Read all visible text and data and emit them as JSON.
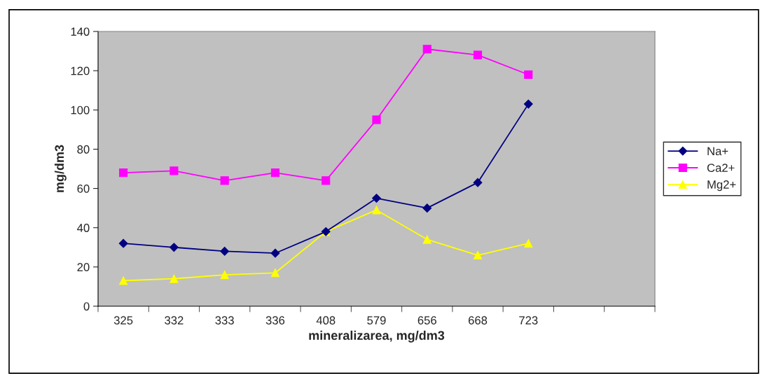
{
  "chart_data": {
    "type": "line",
    "xlabel": "mineralizarea, mg/dm3",
    "ylabel": "mg/dm3",
    "categories": [
      "325",
      "332",
      "333",
      "336",
      "408",
      "579",
      "656",
      "668",
      "723",
      null,
      null
    ],
    "series": [
      {
        "name": "Na+",
        "color": "#000080",
        "marker": "diamond",
        "values": [
          32,
          30,
          28,
          27,
          38,
          55,
          50,
          63,
          103,
          null,
          null
        ]
      },
      {
        "name": "Ca2+",
        "color": "#ff00ff",
        "marker": "square",
        "values": [
          68,
          69,
          64,
          68,
          64,
          95,
          131,
          128,
          118,
          null,
          null
        ]
      },
      {
        "name": "Mg2+",
        "color": "#ffff00",
        "marker": "triangle",
        "values": [
          13,
          14,
          16,
          17,
          38,
          49,
          34,
          26,
          32,
          null,
          null
        ]
      }
    ],
    "ylim": [
      0,
      140
    ],
    "yticks": [
      0,
      20,
      40,
      60,
      80,
      100,
      120,
      140
    ],
    "grid": false,
    "legend": "right"
  }
}
